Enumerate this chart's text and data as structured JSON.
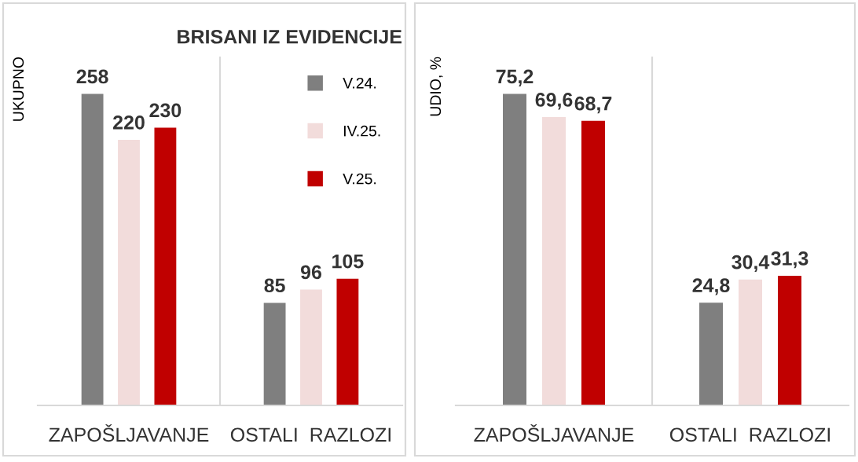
{
  "chart_data": [
    {
      "type": "bar",
      "title": "BRISANI IZ EVIDENCIJE",
      "ylabel": "UKUPNO",
      "categories": [
        "ZAPOŠLJAVANJE",
        "OSTALI  RAZLOZI"
      ],
      "series": [
        {
          "name": "V.24.",
          "color": "#7f7f7f",
          "values": [
            258,
            85
          ]
        },
        {
          "name": "IV.25.",
          "color": "#f2dcdb",
          "values": [
            220,
            96
          ]
        },
        {
          "name": "V.25.",
          "color": "#c00000",
          "values": [
            230,
            105
          ]
        }
      ],
      "data_labels": true,
      "legend": "top right",
      "grid": "x",
      "tick_labels": "x"
    },
    {
      "type": "bar",
      "ylabel": "UDIO, %",
      "categories": [
        "ZAPOŠLJAVANJE",
        "OSTALI  RAZLOZI"
      ],
      "series": [
        {
          "color": "#7f7f7f",
          "values": [
            75.2,
            24.8
          ],
          "value_labels": [
            "75,2",
            "24,8"
          ]
        },
        {
          "color": "#f2dcdb",
          "values": [
            69.6,
            30.4
          ],
          "value_labels": [
            "69,6",
            "30,4"
          ]
        },
        {
          "color": "#c00000",
          "values": [
            68.7,
            31.3
          ],
          "value_labels": [
            "68,7",
            "31,3"
          ]
        }
      ],
      "grid": "x",
      "tick_labels": "x"
    }
  ]
}
